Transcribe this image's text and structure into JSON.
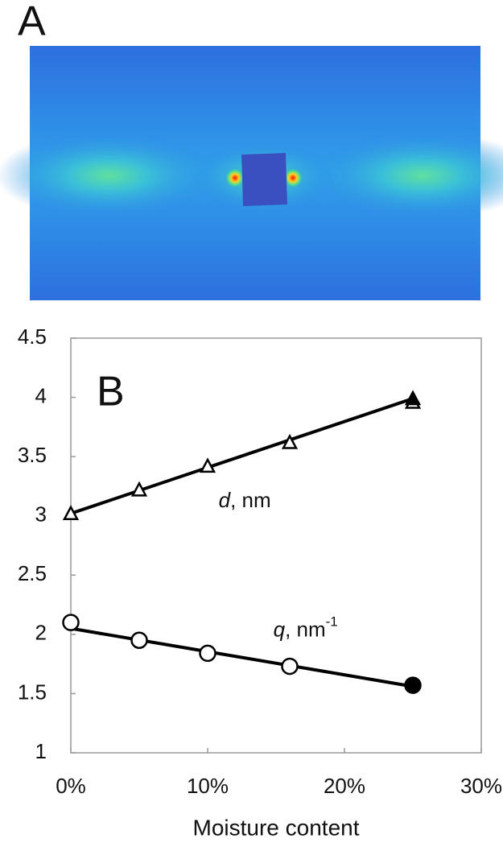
{
  "panel_a": {
    "label": "A"
  },
  "chart_data": {
    "type": "scatter",
    "panel_label": "B",
    "x_label": "Moisture content",
    "xlim": [
      0,
      30
    ],
    "xticks": [
      {
        "value": 0,
        "label": "0%"
      },
      {
        "value": 10,
        "label": "10%"
      },
      {
        "value": 20,
        "label": "20%"
      },
      {
        "value": 30,
        "label": "30%"
      }
    ],
    "ylim": [
      1,
      4.5
    ],
    "yticks": [
      1,
      1.5,
      2,
      2.5,
      3,
      3.5,
      4,
      4.5
    ],
    "series": [
      {
        "marker": "triangle",
        "filled": false,
        "color": "#000000",
        "x": [
          0,
          5,
          10,
          16,
          25
        ],
        "values": [
          3.02,
          3.22,
          3.42,
          3.62,
          3.96
        ]
      },
      {
        "marker": "triangle",
        "filled": true,
        "color": "#000000",
        "x": [
          25
        ],
        "values": [
          3.99
        ]
      },
      {
        "marker": "circle",
        "filled": false,
        "color": "#000000",
        "x": [
          0,
          5,
          10,
          16
        ],
        "values": [
          2.1,
          1.95,
          1.84,
          1.73
        ]
      },
      {
        "marker": "circle",
        "filled": true,
        "color": "#000000",
        "x": [
          25
        ],
        "values": [
          1.57
        ]
      }
    ],
    "fits": [
      {
        "x": [
          0,
          25
        ],
        "values": [
          3.02,
          3.99
        ]
      },
      {
        "x": [
          0,
          25
        ],
        "values": [
          2.05,
          1.56
        ]
      }
    ],
    "annotations": [
      {
        "italic": "d",
        "text": ", nm",
        "x": 10.8,
        "y": 3.12
      },
      {
        "italic": "q",
        "text": ", nm",
        "sup": "-1",
        "x": 14.8,
        "y": 2.03
      }
    ]
  }
}
